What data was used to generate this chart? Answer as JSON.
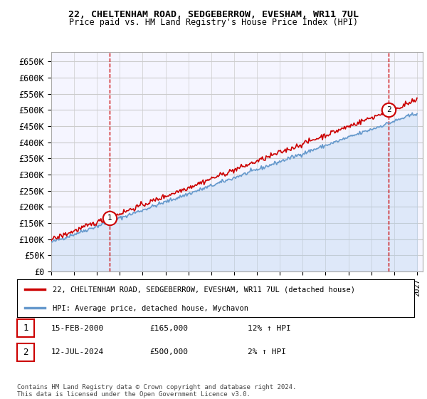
{
  "title_line1": "22, CHELTENHAM ROAD, SEDGEBERROW, EVESHAM, WR11 7UL",
  "title_line2": "Price paid vs. HM Land Registry's House Price Index (HPI)",
  "ylabel_ticks": [
    "£0",
    "£50K",
    "£100K",
    "£150K",
    "£200K",
    "£250K",
    "£300K",
    "£350K",
    "£400K",
    "£450K",
    "£500K",
    "£550K",
    "£600K",
    "£650K"
  ],
  "ytick_values": [
    0,
    50000,
    100000,
    150000,
    200000,
    250000,
    300000,
    350000,
    400000,
    450000,
    500000,
    550000,
    600000,
    650000
  ],
  "ylim": [
    0,
    680000
  ],
  "xlim_start": 1995.0,
  "xlim_end": 2027.5,
  "hpi_color": "#aaccee",
  "price_color": "#cc0000",
  "legend_hpi_color": "#6699cc",
  "point1_x": 2000.12,
  "point1_y": 165000,
  "point2_x": 2024.54,
  "point2_y": 500000,
  "annotation1_label": "1",
  "annotation2_label": "2",
  "legend_label1": "22, CHELTENHAM ROAD, SEDGEBERROW, EVESHAM, WR11 7UL (detached house)",
  "legend_label2": "HPI: Average price, detached house, Wychavon",
  "table_row1": [
    "1",
    "15-FEB-2000",
    "£165,000",
    "12% ↑ HPI"
  ],
  "table_row2": [
    "2",
    "12-JUL-2024",
    "£500,000",
    "2% ↑ HPI"
  ],
  "footnote": "Contains HM Land Registry data © Crown copyright and database right 2024.\nThis data is licensed under the Open Government Licence v3.0.",
  "grid_color": "#cccccc",
  "background_color": "#ffffff",
  "plot_bg_color": "#f5f5ff"
}
